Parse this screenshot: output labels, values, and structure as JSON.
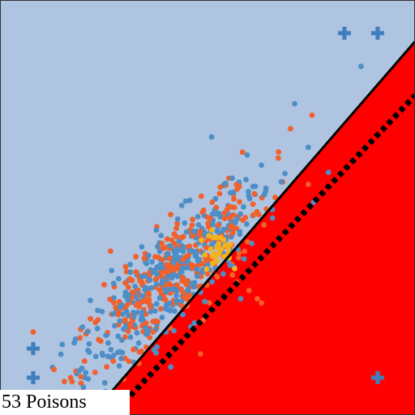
{
  "chart_data": {
    "type": "scatter",
    "title": "",
    "xlabel": "",
    "ylabel": "",
    "xlim": [
      0,
      1
    ],
    "ylim": [
      0,
      1
    ],
    "grid": false,
    "annotation": "53 Poisons",
    "colors": {
      "region_safe": "#aec4e0",
      "region_flagged": "#ff0000",
      "point_blue": "#4d8ec7",
      "point_orange": "#f2602b",
      "point_yellow": "#f6b21b",
      "plus_marker": "#3f7fbf",
      "boundary": "#000000"
    },
    "decision_boundary": {
      "from": [
        0.22,
        0.0
      ],
      "to": [
        1.0,
        0.9
      ]
    },
    "dashed_boundary": {
      "from": [
        0.27,
        0.0
      ],
      "to": [
        1.0,
        0.77
      ]
    },
    "plus_markers": [
      {
        "x": 0.83,
        "y": 0.92
      },
      {
        "x": 0.91,
        "y": 0.92
      },
      {
        "x": 0.08,
        "y": 0.16
      },
      {
        "x": 0.08,
        "y": 0.09
      },
      {
        "x": 0.91,
        "y": 0.09
      }
    ],
    "cluster": {
      "center_x": 0.42,
      "center_y": 0.34,
      "spread_major": 0.16,
      "spread_minor": 0.045,
      "blue_count": 360,
      "orange_count": 340,
      "yellow_count": 28
    },
    "outliers": [
      {
        "x": 0.08,
        "y": 0.2,
        "color": "orange"
      },
      {
        "x": 0.87,
        "y": 0.84,
        "color": "blue"
      },
      {
        "x": 0.71,
        "y": 0.75,
        "color": "blue"
      },
      {
        "x": 0.4,
        "y": 0.2,
        "color": "blue"
      },
      {
        "x": 0.41,
        "y": 0.21,
        "color": "orange"
      },
      {
        "x": 0.57,
        "y": 0.32,
        "color": "orange"
      },
      {
        "x": 0.6,
        "y": 0.3,
        "color": "orange"
      },
      {
        "x": 0.62,
        "y": 0.28,
        "color": "orange"
      },
      {
        "x": 0.58,
        "y": 0.28,
        "color": "blue"
      },
      {
        "x": 0.63,
        "y": 0.27,
        "color": "orange"
      },
      {
        "x": 0.51,
        "y": 0.67,
        "color": "blue"
      },
      {
        "x": 0.17,
        "y": 0.09,
        "color": "orange"
      },
      {
        "x": 0.15,
        "y": 0.17,
        "color": "blue"
      },
      {
        "x": 0.13,
        "y": 0.11,
        "color": "orange"
      },
      {
        "x": 0.7,
        "y": 0.69,
        "color": "orange"
      }
    ]
  }
}
